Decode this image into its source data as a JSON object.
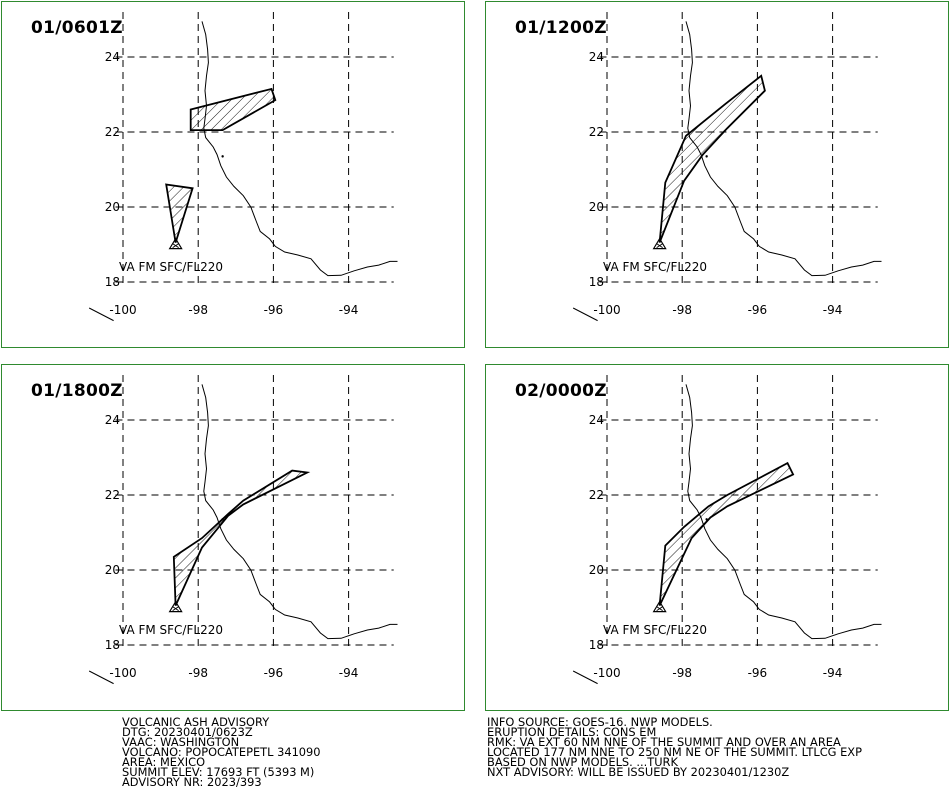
{
  "panels": [
    {
      "time": "01/0601Z",
      "label": "VA FM SFC/FL220",
      "ash_polygons": [
        "box-ne-strip",
        "small-wedge-south"
      ]
    },
    {
      "time": "01/1200Z",
      "label": "VA FM SFC/FL220",
      "ash_polygons": [
        "long-ne-plume"
      ]
    },
    {
      "time": "01/1800Z",
      "label": "VA FM SFC/FL220",
      "ash_polygons": [
        "long-ne-plume"
      ]
    },
    {
      "time": "02/0000Z",
      "label": "VA FM SFC/FL220",
      "ash_polygons": [
        "long-ne-plume"
      ]
    }
  ],
  "axis": {
    "lat_labels": [
      "24",
      "22",
      "20",
      "18"
    ],
    "lon_labels": [
      "-100",
      "-98",
      "-96",
      "-94"
    ]
  },
  "advisory_left": [
    "VOLCANIC ASH ADVISORY",
    "DTG: 20230401/0623Z",
    "VAAC: WASHINGTON",
    "VOLCANO: POPOCATEPETL 341090",
    "AREA: MEXICO",
    "SUMMIT ELEV: 17693 FT (5393 M)",
    "ADVISORY NR: 2023/393"
  ],
  "advisory_right": [
    "INFO SOURCE: GOES-16. NWP MODELS.",
    "ERUPTION DETAILS: CONS EM",
    "RMK: VA EXT 60 NM NNE OF THE SUMMIT AND OVER AN AREA",
    "LOCATED 177 NM NNE TO 250 NM NE OF THE SUMMIT. LTLCG EXP",
    "BASED ON NWP MODELS. ...TURK",
    "NXT ADVISORY: WILL BE ISSUED BY 20230401/1230Z"
  ],
  "colors": {
    "frame": "#2f8a2f",
    "ink": "#000000",
    "background": "#ffffff"
  }
}
